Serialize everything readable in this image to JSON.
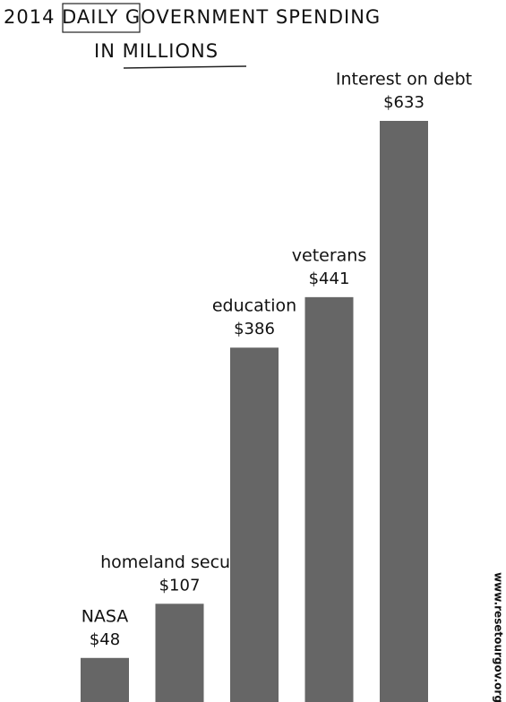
{
  "chart_data": {
    "type": "bar",
    "title": "2014 DAILY GOVERNMENT SPENDING",
    "subtitle": "IN MILLIONS",
    "categories": [
      "NASA",
      "homeland security",
      "education",
      "veterans",
      "Interest on debt"
    ],
    "values": [
      48,
      107,
      386,
      441,
      633
    ],
    "value_labels": [
      "$48",
      "$107",
      "$386",
      "$441",
      "$633"
    ],
    "color": "#666666",
    "source": "www.resetourgov.org"
  }
}
